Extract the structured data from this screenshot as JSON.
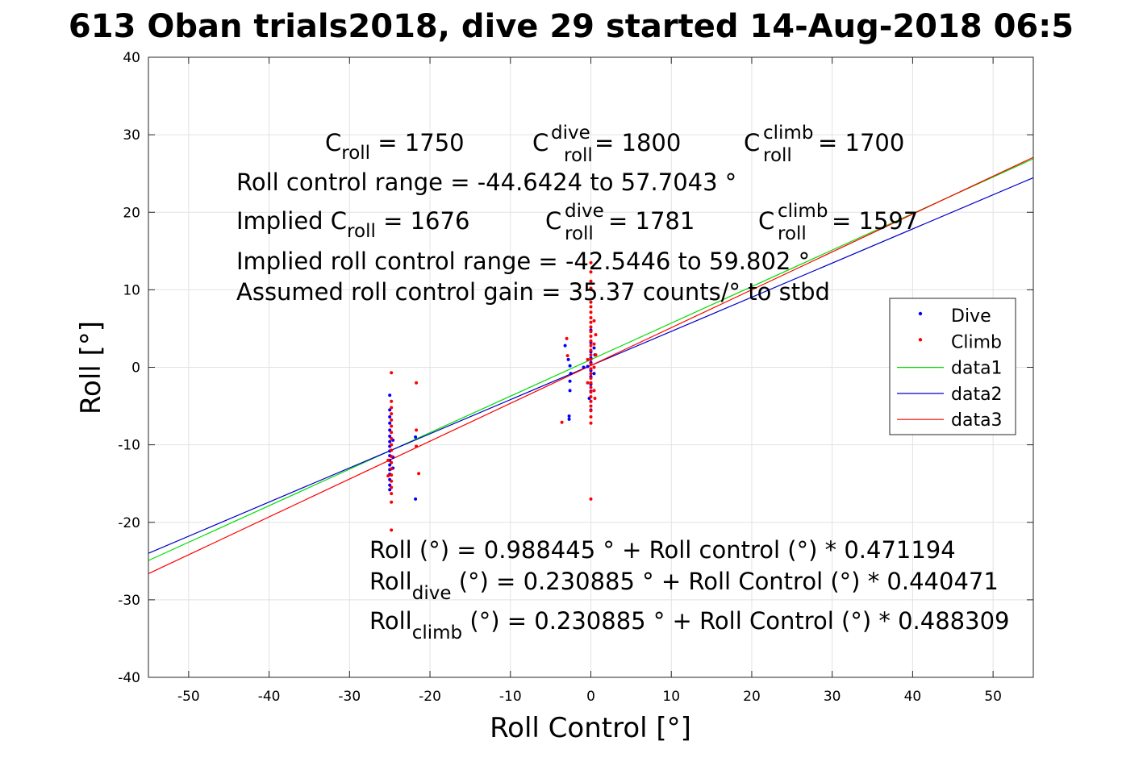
{
  "chart_data": {
    "type": "scatter",
    "title": "613 Oban trials2018, dive 29 started 14-Aug-2018 06:5",
    "xlabel": "Roll Control [°]",
    "ylabel": "Roll [°]",
    "xlim": [
      -55,
      55
    ],
    "ylim": [
      -40,
      40
    ],
    "xticks": [
      -50,
      -40,
      -30,
      -20,
      -10,
      0,
      10,
      20,
      30,
      40,
      50
    ],
    "yticks": [
      -40,
      -30,
      -20,
      -10,
      0,
      10,
      20,
      30,
      40
    ],
    "xtick_labels": [
      "-50",
      "-40",
      "-30",
      "-20",
      "-10",
      "0",
      "10",
      "20",
      "30",
      "40",
      "50"
    ],
    "ytick_labels": [
      "-40",
      "-30",
      "-20",
      "-10",
      "0",
      "10",
      "20",
      "30",
      "40"
    ],
    "grid": true,
    "legend_position": "right",
    "legend": [
      "Dive",
      "Climb",
      "data1",
      "data2",
      "data3"
    ],
    "series": [
      {
        "name": "Dive",
        "kind": "points",
        "color": "#0000ff",
        "points": [
          [
            -25,
            -3.6
          ],
          [
            -25,
            -5.5
          ],
          [
            -25,
            -6.4
          ],
          [
            -25,
            -7.2
          ],
          [
            -25,
            -8.1
          ],
          [
            -25,
            -8.9
          ],
          [
            -25,
            -9.6
          ],
          [
            -25,
            -10.2
          ],
          [
            -25,
            -10.8
          ],
          [
            -25,
            -11.4
          ],
          [
            -25,
            -12.0
          ],
          [
            -25,
            -12.6
          ],
          [
            -25,
            -13.2
          ],
          [
            -25,
            -13.8
          ],
          [
            -25,
            -14.5
          ],
          [
            -25,
            -15.2
          ],
          [
            -25,
            -15.8
          ],
          [
            -24.6,
            -9.4
          ],
          [
            -24.6,
            -11.6
          ],
          [
            -24.6,
            -13.0
          ],
          [
            -21.8,
            -17.0
          ],
          [
            -21.8,
            -9.0
          ],
          [
            -3.2,
            2.8
          ],
          [
            -2.8,
            1.0
          ],
          [
            -2.6,
            0.2
          ],
          [
            -2.5,
            -0.8
          ],
          [
            -2.6,
            -1.8
          ],
          [
            -2.6,
            -3.0
          ],
          [
            -2.7,
            -6.3
          ],
          [
            -2.7,
            -6.7
          ],
          [
            -0.9,
            0.0
          ],
          [
            -0.4,
            0.1
          ],
          [
            0,
            4.8
          ],
          [
            0,
            3.2
          ],
          [
            0,
            2.0
          ],
          [
            0,
            1.2
          ],
          [
            0,
            0.6
          ],
          [
            0,
            -0.4
          ],
          [
            0,
            -1.2
          ],
          [
            0,
            -2.2
          ],
          [
            0,
            -3.1
          ],
          [
            0,
            -4.4
          ],
          [
            0,
            -5.5
          ],
          [
            0.4,
            2.5
          ],
          [
            0.4,
            -0.8
          ],
          [
            0.5,
            1.6
          ],
          [
            -0.2,
            -4.0
          ]
        ]
      },
      {
        "name": "Climb",
        "kind": "points",
        "color": "#ff0000",
        "points": [
          [
            -24.8,
            -0.7
          ],
          [
            -24.8,
            -4.4
          ],
          [
            -24.8,
            -5.2
          ],
          [
            -24.8,
            -6.0
          ],
          [
            -24.8,
            -6.8
          ],
          [
            -24.8,
            -7.6
          ],
          [
            -24.8,
            -8.4
          ],
          [
            -24.8,
            -9.2
          ],
          [
            -24.8,
            -10.0
          ],
          [
            -24.8,
            -10.7
          ],
          [
            -24.8,
            -11.5
          ],
          [
            -24.8,
            -12.3
          ],
          [
            -24.8,
            -13.1
          ],
          [
            -24.8,
            -13.9
          ],
          [
            -24.8,
            -14.7
          ],
          [
            -24.8,
            -15.5
          ],
          [
            -24.8,
            -16.3
          ],
          [
            -24.8,
            -17.4
          ],
          [
            -24.8,
            -21.0
          ],
          [
            -25.2,
            -12.0
          ],
          [
            -25.2,
            -14.0
          ],
          [
            -21.7,
            -2.0
          ],
          [
            -21.7,
            -8.1
          ],
          [
            -21.7,
            -10.2
          ],
          [
            -21.4,
            -13.7
          ],
          [
            -3.6,
            -7.1
          ],
          [
            -3.0,
            3.7
          ],
          [
            -2.9,
            1.5
          ],
          [
            0,
            13.5
          ],
          [
            0,
            12.3
          ],
          [
            0,
            11.1
          ],
          [
            0,
            10.2
          ],
          [
            0,
            8.4
          ],
          [
            0,
            7.8
          ],
          [
            0,
            7.1
          ],
          [
            0,
            6.4
          ],
          [
            0,
            5.8
          ],
          [
            0,
            5.2
          ],
          [
            0,
            4.6
          ],
          [
            0,
            4.0
          ],
          [
            0,
            3.4
          ],
          [
            0,
            2.8
          ],
          [
            0,
            2.2
          ],
          [
            0,
            1.6
          ],
          [
            0,
            1.0
          ],
          [
            0,
            0.4
          ],
          [
            0,
            -0.2
          ],
          [
            0,
            -0.8
          ],
          [
            0,
            -1.4
          ],
          [
            0,
            -2.0
          ],
          [
            0,
            -2.6
          ],
          [
            0,
            -3.2
          ],
          [
            0,
            -3.8
          ],
          [
            0,
            -4.4
          ],
          [
            0,
            -5.0
          ],
          [
            0,
            -5.6
          ],
          [
            0,
            -6.4
          ],
          [
            0,
            -7.2
          ],
          [
            0,
            -17.0
          ],
          [
            0.4,
            6.0
          ],
          [
            0.4,
            3.0
          ],
          [
            0.4,
            0.0
          ],
          [
            0.4,
            -3.0
          ],
          [
            0.5,
            -4.0
          ],
          [
            -0.4,
            1.0
          ],
          [
            -0.4,
            -2.0
          ],
          [
            0.6,
            1.6
          ],
          [
            0.6,
            4.2
          ]
        ]
      },
      {
        "name": "data1",
        "kind": "line",
        "color": "#00dd00",
        "intercept": 0.988445,
        "slope": 0.471194,
        "x_range": [
          -55,
          55
        ]
      },
      {
        "name": "data2",
        "kind": "line",
        "color": "#0000c8",
        "intercept": 0.230885,
        "slope": 0.440471,
        "x_range": [
          -55,
          55
        ]
      },
      {
        "name": "data3",
        "kind": "line",
        "color": "#ff0000",
        "intercept": 0.230885,
        "slope": 0.488309,
        "x_range": [
          -55,
          55
        ]
      }
    ],
    "annotations": {
      "c_roll_line": {
        "c": "C",
        "roll": "roll",
        "dive": "dive",
        "climb": "climb",
        "c_roll": " = 1750",
        "c_dive": " = 1800",
        "c_climb": " = 1700"
      },
      "range_line": "Roll control range = -44.6424 to 57.7043 °",
      "implied_line": {
        "prefix": "Implied C",
        "c_roll": " = 1676",
        "c_dive": " = 1781",
        "c_climb": " = 1597"
      },
      "implied_range_line": "Implied roll control range = -42.5446 to 59.802 °",
      "gain_line": "Assumed roll control gain = 35.37 counts/° to stbd",
      "fit_line": "Roll (°) = 0.988445 ° + Roll control (°) * 0.471194",
      "fit_dive": {
        "prefix": "Roll",
        "sub": "dive",
        "suffix": " (°) = 0.230885 ° + Roll Control (°) * 0.440471"
      },
      "fit_climb": {
        "prefix": "Roll",
        "sub": "climb",
        "suffix": " (°) = 0.230885 ° + Roll Control (°) * 0.488309"
      }
    }
  }
}
